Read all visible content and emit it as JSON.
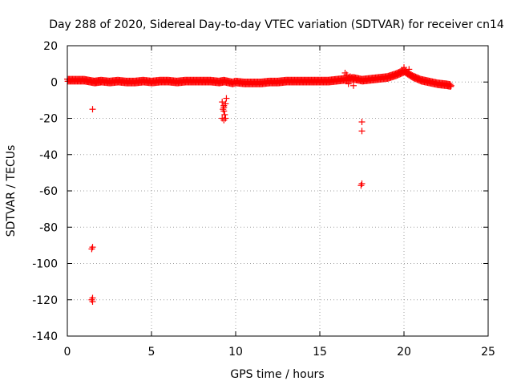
{
  "chart_data": {
    "type": "scatter",
    "title": "Day 288 of 2020, Sidereal Day-to-day VTEC variation (SDTVAR) for receiver cn14",
    "xlabel": "GPS time / hours",
    "ylabel": "SDTVAR / TECUs",
    "xlim": [
      0,
      25
    ],
    "ylim": [
      -140,
      20
    ],
    "xticks": [
      0,
      5,
      10,
      15,
      20,
      25
    ],
    "yticks": [
      20,
      0,
      -20,
      -40,
      -60,
      -80,
      -100,
      -120,
      -140
    ],
    "grid": true,
    "marker": "+",
    "color": "#ff0000",
    "series": [
      {
        "name": "SDTVAR",
        "trend": [
          [
            0.0,
            1
          ],
          [
            0.5,
            1
          ],
          [
            1.0,
            1
          ],
          [
            1.3,
            0.5
          ],
          [
            1.6,
            0
          ],
          [
            2.0,
            0.5
          ],
          [
            2.5,
            0
          ],
          [
            3.0,
            0.5
          ],
          [
            3.5,
            0
          ],
          [
            4.0,
            0
          ],
          [
            4.5,
            0.5
          ],
          [
            5.0,
            0
          ],
          [
            5.5,
            0.5
          ],
          [
            6.0,
            0.5
          ],
          [
            6.5,
            0
          ],
          [
            7.0,
            0.5
          ],
          [
            7.5,
            0.5
          ],
          [
            8.0,
            0.5
          ],
          [
            8.5,
            0.5
          ],
          [
            9.0,
            0
          ],
          [
            9.3,
            0.5
          ],
          [
            9.8,
            -0.5
          ],
          [
            10.0,
            0
          ],
          [
            10.5,
            -0.5
          ],
          [
            11.0,
            -0.5
          ],
          [
            11.5,
            -0.5
          ],
          [
            12.0,
            0
          ],
          [
            12.5,
            0
          ],
          [
            13.0,
            0.5
          ],
          [
            13.5,
            0.5
          ],
          [
            14.0,
            0.5
          ],
          [
            14.5,
            0.5
          ],
          [
            15.0,
            0.5
          ],
          [
            15.5,
            0.5
          ],
          [
            16.0,
            1
          ],
          [
            16.5,
            1.5
          ],
          [
            17.0,
            2
          ],
          [
            17.5,
            1
          ],
          [
            18.0,
            1.5
          ],
          [
            18.5,
            2
          ],
          [
            19.0,
            2.5
          ],
          [
            19.5,
            4
          ],
          [
            20.0,
            6
          ],
          [
            20.5,
            3
          ],
          [
            21.0,
            1
          ],
          [
            21.5,
            0
          ],
          [
            22.0,
            -1
          ],
          [
            22.5,
            -1.5
          ],
          [
            22.8,
            -2
          ]
        ],
        "outliers": [
          [
            1.5,
            -15
          ],
          [
            1.5,
            -91
          ],
          [
            1.45,
            -92
          ],
          [
            1.5,
            -119
          ],
          [
            1.45,
            -120
          ],
          [
            1.5,
            -121
          ],
          [
            9.2,
            -11
          ],
          [
            9.3,
            -13
          ],
          [
            9.25,
            -15
          ],
          [
            9.3,
            -16
          ],
          [
            9.35,
            -18
          ],
          [
            9.2,
            -20
          ],
          [
            9.3,
            -21
          ],
          [
            9.4,
            -20
          ],
          [
            9.45,
            -9
          ],
          [
            9.4,
            -12
          ],
          [
            9.3,
            -14
          ],
          [
            16.5,
            5
          ],
          [
            16.6,
            4
          ],
          [
            16.8,
            3
          ],
          [
            17.0,
            2
          ],
          [
            17.2,
            1
          ],
          [
            16.7,
            -1
          ],
          [
            17.0,
            -2
          ],
          [
            17.5,
            -22
          ],
          [
            17.5,
            -27
          ],
          [
            17.5,
            -56
          ],
          [
            17.45,
            -57
          ],
          [
            20.0,
            8
          ],
          [
            20.3,
            7
          ]
        ]
      }
    ]
  }
}
